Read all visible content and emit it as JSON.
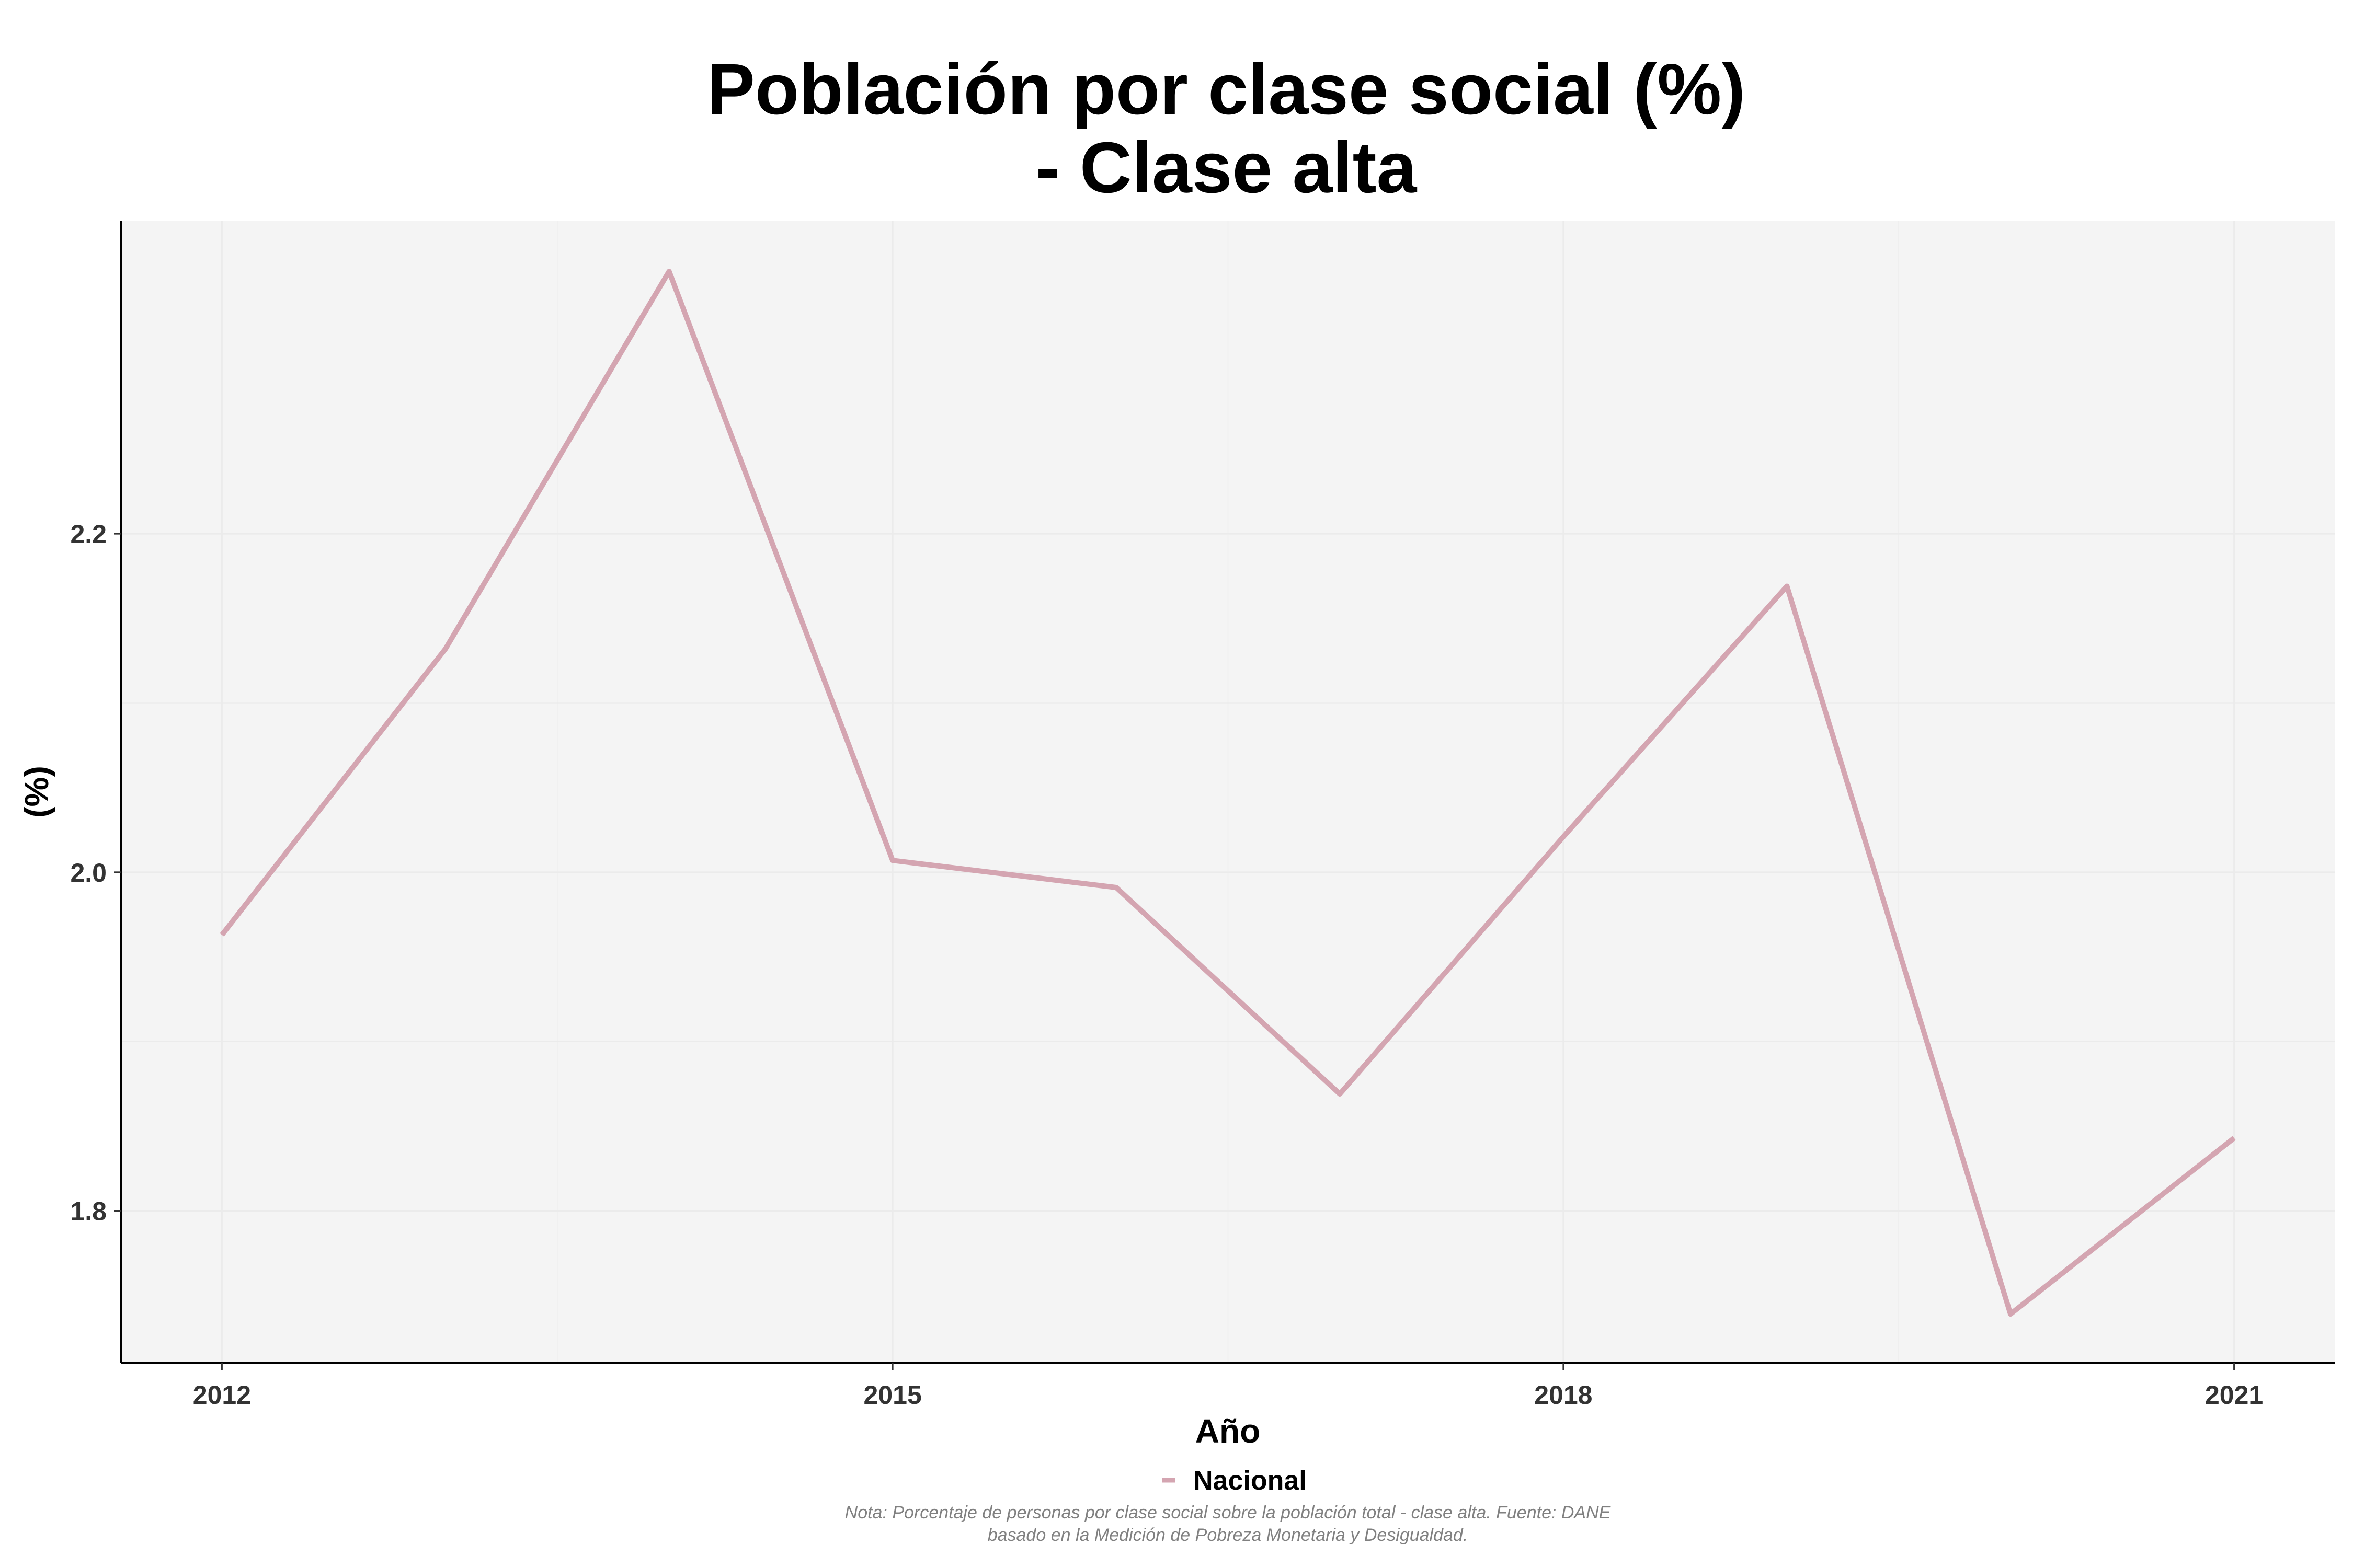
{
  "chart_data": {
    "type": "line",
    "title_line1": "Población por clase social (%)",
    "title_line2": "- Clase alta",
    "xlabel": "Año",
    "ylabel": "(%)",
    "x": [
      2012,
      2013,
      2014,
      2015,
      2016,
      2017,
      2018,
      2019,
      2020,
      2021
    ],
    "series": [
      {
        "name": "Nacional",
        "color": "#d4a5b1",
        "values": [
          1.963,
          2.132,
          2.355,
          2.007,
          1.991,
          1.869,
          2.021,
          2.169,
          1.739,
          1.843
        ]
      }
    ],
    "xlim": [
      2011.55,
      2021.45
    ],
    "ylim": [
      1.71,
      2.385
    ],
    "xticks": [
      2012,
      2015,
      2018,
      2021
    ],
    "xtick_labels": [
      "2012",
      "2015",
      "2018",
      "2021"
    ],
    "yticks": [
      1.8,
      2.0,
      2.2
    ],
    "ytick_labels": [
      "1.8",
      "2.0",
      "2.2"
    ],
    "grid": true,
    "legend_position": "bottom",
    "panel_color": "#f4f4f4",
    "grid_color": "#ebebeb",
    "caption_line1": "Nota: Porcentaje de personas por clase social sobre la población total - clase alta. Fuente: DANE",
    "caption_line2": "basado en la Medición de Pobreza Monetaria y Desigualdad."
  }
}
